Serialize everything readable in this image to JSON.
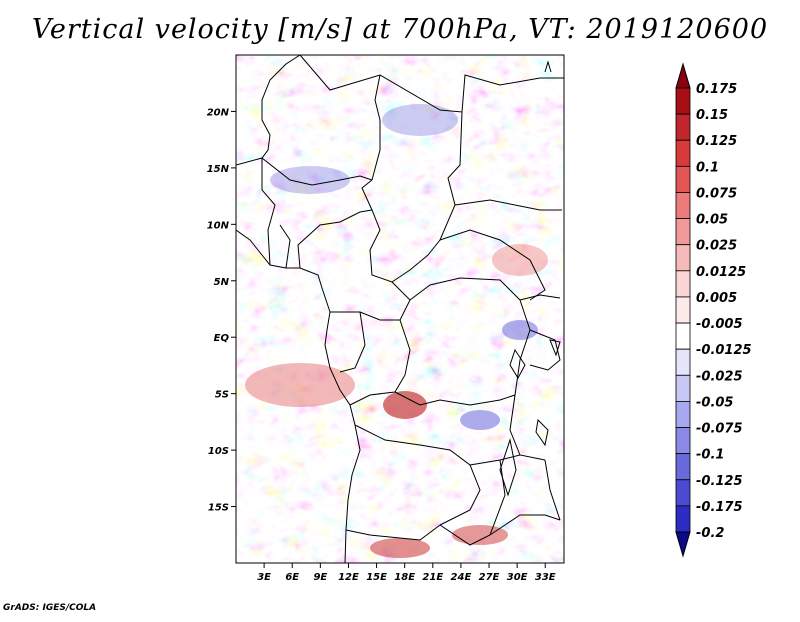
{
  "title": "Vertical velocity [m/s] at 700hPa, VT: 2019120600",
  "credit": "GrADS: IGES/COLA",
  "map": {
    "lon_range": [
      0,
      35
    ],
    "lat_range": [
      -20,
      25
    ],
    "y_ticks": [
      {
        "lat": 20,
        "label": "20N"
      },
      {
        "lat": 15,
        "label": "15N"
      },
      {
        "lat": 10,
        "label": "10N"
      },
      {
        "lat": 5,
        "label": "5N"
      },
      {
        "lat": 0,
        "label": "EQ"
      },
      {
        "lat": -5,
        "label": "5S"
      },
      {
        "lat": -10,
        "label": "10S"
      },
      {
        "lat": -15,
        "label": "15S"
      }
    ],
    "x_ticks": [
      {
        "lon": 3,
        "label": "3E"
      },
      {
        "lon": 6,
        "label": "6E"
      },
      {
        "lon": 9,
        "label": "9E"
      },
      {
        "lon": 12,
        "label": "12E"
      },
      {
        "lon": 15,
        "label": "15E"
      },
      {
        "lon": 18,
        "label": "18E"
      },
      {
        "lon": 21,
        "label": "21E"
      },
      {
        "lon": 24,
        "label": "24E"
      },
      {
        "lon": 27,
        "label": "27E"
      },
      {
        "lon": 30,
        "label": "30E"
      },
      {
        "lon": 33,
        "label": "33E"
      }
    ]
  },
  "colorbar": {
    "levels": [
      {
        "label": "0.175",
        "color": "#a50f15"
      },
      {
        "label": "0.15",
        "color": "#c0272d"
      },
      {
        "label": "0.125",
        "color": "#d63a3a"
      },
      {
        "label": "0.1",
        "color": "#e25656"
      },
      {
        "label": "0.075",
        "color": "#ec7b7b"
      },
      {
        "label": "0.05",
        "color": "#f29a9a"
      },
      {
        "label": "0.025",
        "color": "#f7baba"
      },
      {
        "label": "0.0125",
        "color": "#fbd6d6"
      },
      {
        "label": "0.005",
        "color": "#fdeaea"
      },
      {
        "label": "-0.005",
        "color": "#ffffff"
      },
      {
        "label": "-0.0125",
        "color": "#e4e4fb"
      },
      {
        "label": "-0.025",
        "color": "#c8c8f5"
      },
      {
        "label": "-0.05",
        "color": "#a8a8ee"
      },
      {
        "label": "-0.075",
        "color": "#8a8ae6"
      },
      {
        "label": "-0.1",
        "color": "#6a6add"
      },
      {
        "label": "-0.125",
        "color": "#4b4bd2"
      },
      {
        "label": "-0.175",
        "color": "#2c2cc3"
      },
      {
        "label": "-0.2",
        "color": "#1414a8"
      }
    ],
    "top_extend_color": "#8b0010",
    "bottom_extend_color": "#0a0a8a"
  }
}
